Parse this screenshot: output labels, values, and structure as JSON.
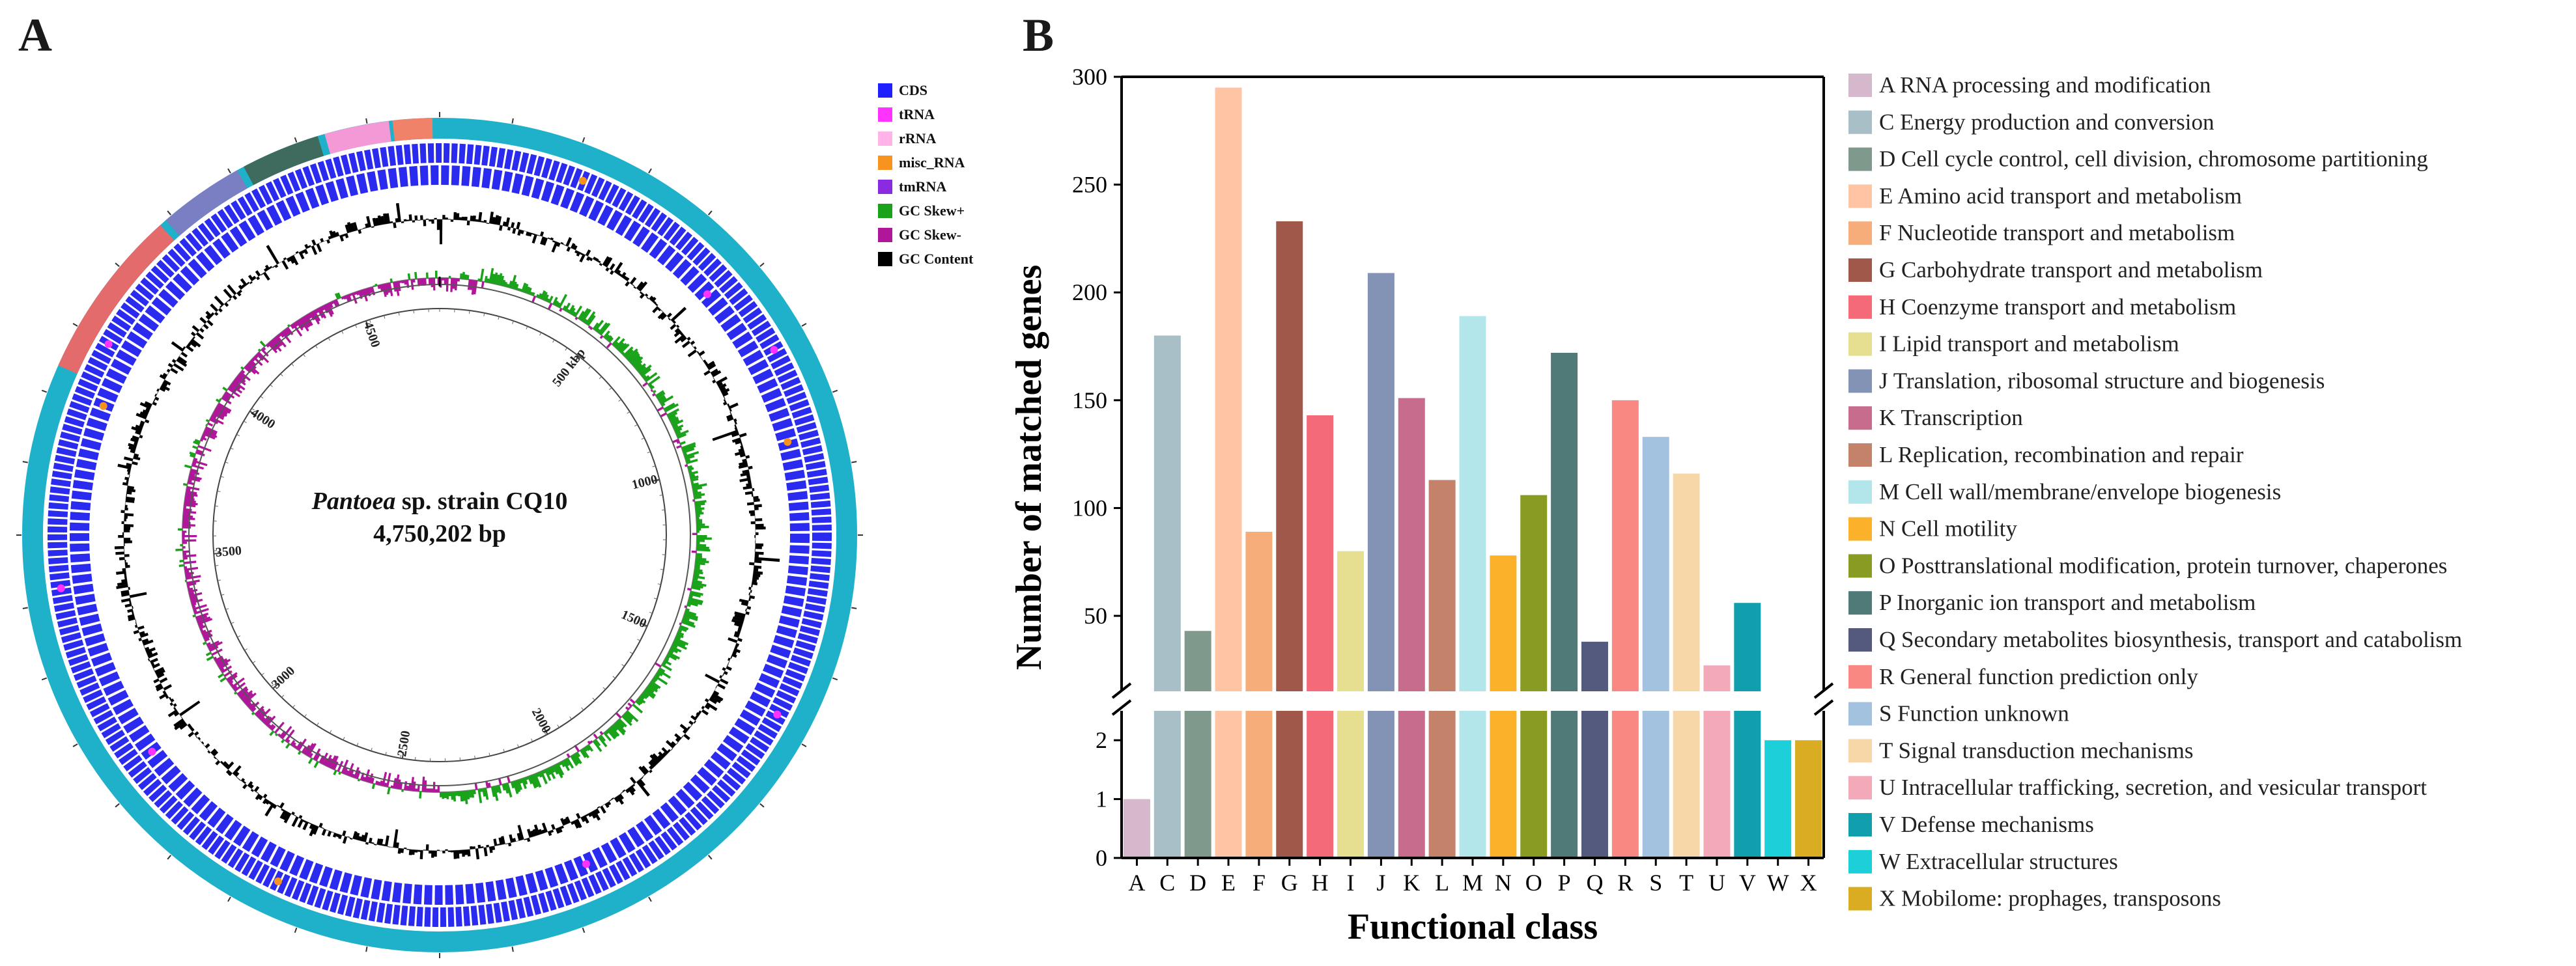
{
  "panel_a": {
    "label": "A",
    "genome_name": "Pantoea",
    "genome_suffix": " sp. strain CQ10",
    "genome_size": "4,750,202 bp",
    "legend": [
      {
        "label": "CDS",
        "color": "#1f1fff"
      },
      {
        "label": "tRNA",
        "color": "#ff33ff"
      },
      {
        "label": "rRNA",
        "color": "#ffb3e6"
      },
      {
        "label": "misc_RNA",
        "color": "#f7931e"
      },
      {
        "label": "tmRNA",
        "color": "#8a2be2"
      },
      {
        "label": "GC Skew+",
        "color": "#1aa31a"
      },
      {
        "label": "GC Skew-",
        "color": "#b0169a"
      },
      {
        "label": "GC Content",
        "color": "#000000"
      }
    ],
    "ring_ticks": [
      "500 kbp",
      "1000",
      "1500",
      "2000",
      "2500",
      "3000",
      "3500",
      "4000",
      "4500"
    ],
    "tick_positions_kbp": [
      500,
      1000,
      1500,
      2000,
      2500,
      3000,
      3500,
      4000,
      4500
    ],
    "genome_length_kbp": 4750.202,
    "colors": {
      "outer_ring": "#1fb1c9",
      "cds": "#1f1fff",
      "gc_content": "#000000",
      "skew_pos": "#1aa31a",
      "skew_neg": "#b0169a"
    }
  },
  "panel_b": {
    "label": "B",
    "chart_data": {
      "type": "bar",
      "title": "",
      "xlabel": "Functional class",
      "ylabel": "Number of matched genes",
      "categories": [
        "A",
        "C",
        "D",
        "E",
        "F",
        "G",
        "H",
        "I",
        "J",
        "K",
        "L",
        "M",
        "N",
        "O",
        "P",
        "Q",
        "R",
        "S",
        "T",
        "U",
        "V",
        "W",
        "X"
      ],
      "values": [
        1,
        180,
        43,
        295,
        89,
        233,
        143,
        80,
        209,
        151,
        113,
        189,
        78,
        106,
        172,
        38,
        150,
        133,
        116,
        27,
        56,
        2,
        2
      ],
      "colors": [
        "#d6b8cc",
        "#a8bfc7",
        "#7f9a8c",
        "#ffc4a3",
        "#f7ad7a",
        "#a0584a",
        "#f56a78",
        "#e6df8f",
        "#8293b5",
        "#c76c8d",
        "#c4826a",
        "#b3e6ea",
        "#fbb22a",
        "#8a9b23",
        "#4f7a78",
        "#545a7e",
        "#f98882",
        "#a3c2e0",
        "#f7d6a8",
        "#f3a9b8",
        "#129fad",
        "#1ccfd8",
        "#d9ac22"
      ],
      "descriptions": [
        "A RNA processing and modification",
        "C Energy production and conversion",
        "D Cell cycle control, cell division, chromosome partitioning",
        "E Amino acid transport and metabolism",
        "F Nucleotide transport and metabolism",
        "G Carbohydrate transport and metabolism",
        "H Coenzyme transport and metabolism",
        "I Lipid transport and metabolism",
        "J Translation, ribosomal structure and biogenesis",
        "K Transcription",
        "L Replication, recombination and repair",
        "M Cell wall/membrane/envelope biogenesis",
        "N Cell motility",
        "O Posttranslational modification, protein turnover, chaperones",
        "P Inorganic ion transport and metabolism",
        "Q Secondary metabolites biosynthesis, transport and catabolism",
        "R General function prediction only",
        "S Function unknown",
        "T Signal transduction mechanisms",
        "U Intracellular trafficking, secretion, and vesicular transport",
        "V Defense mechanisms",
        "W Extracellular structures",
        "X Mobilome: prophages, transposons"
      ],
      "y_axis_break": [
        2.5,
        15
      ],
      "y_ticks_upper": [
        50,
        100,
        150,
        200,
        250,
        300
      ],
      "y_ticks_lower": [
        0,
        1,
        2
      ],
      "ylim_upper": [
        15,
        300
      ],
      "ylim_lower": [
        0,
        2.5
      ]
    }
  }
}
